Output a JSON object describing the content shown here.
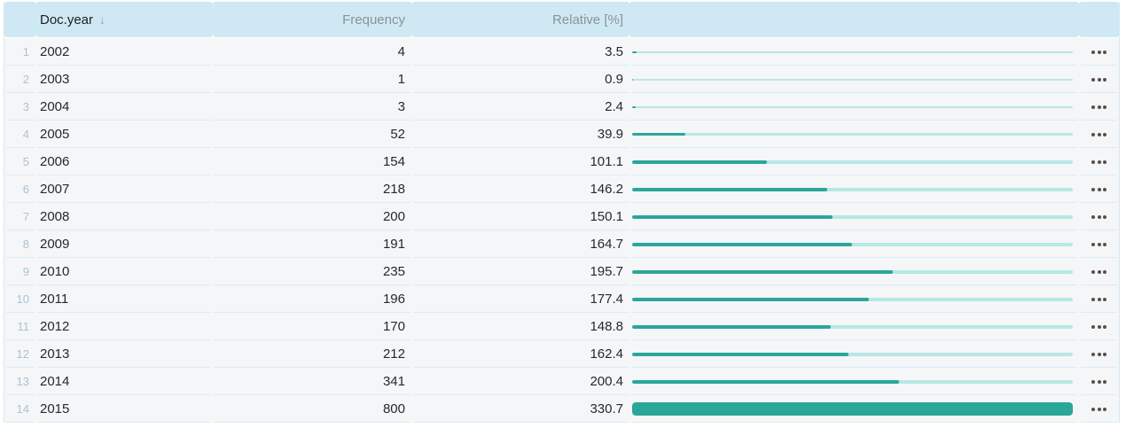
{
  "table": {
    "columns": [
      {
        "label": "Doc.year",
        "sorted": "desc"
      },
      {
        "label": "Frequency"
      },
      {
        "label": "Relative [%]"
      }
    ],
    "sort_icon": "↓",
    "max_relative": 330.7,
    "rows": [
      {
        "index": 1,
        "year": "2002",
        "frequency": 4,
        "relative": 3.5
      },
      {
        "index": 2,
        "year": "2003",
        "frequency": 1,
        "relative": 0.9
      },
      {
        "index": 3,
        "year": "2004",
        "frequency": 3,
        "relative": 2.4
      },
      {
        "index": 4,
        "year": "2005",
        "frequency": 52,
        "relative": 39.9
      },
      {
        "index": 5,
        "year": "2006",
        "frequency": 154,
        "relative": 101.1
      },
      {
        "index": 6,
        "year": "2007",
        "frequency": 218,
        "relative": 146.2
      },
      {
        "index": 7,
        "year": "2008",
        "frequency": 200,
        "relative": 150.1
      },
      {
        "index": 8,
        "year": "2009",
        "frequency": 191,
        "relative": 164.7
      },
      {
        "index": 9,
        "year": "2010",
        "frequency": 235,
        "relative": 195.7
      },
      {
        "index": 10,
        "year": "2011",
        "frequency": 196,
        "relative": 177.4
      },
      {
        "index": 11,
        "year": "2012",
        "frequency": 170,
        "relative": 148.8
      },
      {
        "index": 12,
        "year": "2013",
        "frequency": 212,
        "relative": 162.4
      },
      {
        "index": 13,
        "year": "2014",
        "frequency": 341,
        "relative": 200.4
      },
      {
        "index": 14,
        "year": "2015",
        "frequency": 800,
        "relative": 330.7
      }
    ]
  },
  "colors": {
    "header_bg": "#cee9f3",
    "row_bg": "#f5f6f7",
    "separator": "#d9ecf5",
    "border": "#d3e8f2",
    "bar_fill": "#2ba69a",
    "bar_track": "#b7e8e3",
    "row_number": "#a9c3d6",
    "text": "#26282b",
    "header_text": "#8b9299",
    "sorted_header_text": "#1d1f22",
    "menu_dots": "#54504c"
  }
}
